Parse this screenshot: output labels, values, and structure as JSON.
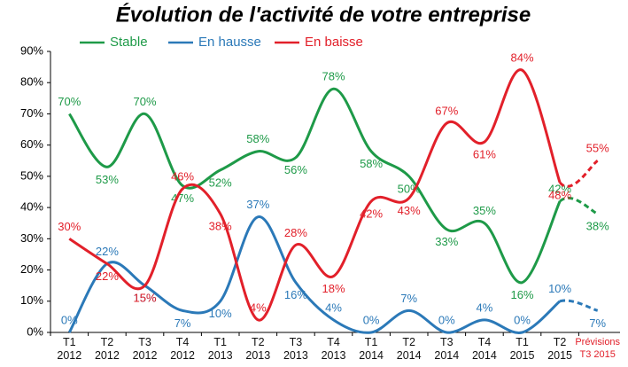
{
  "chart_data": {
    "type": "line",
    "title": "Évolution de l'activité de votre entreprise",
    "categories": [
      "T1 2012",
      "T2 2012",
      "T3 2012",
      "T4 2012",
      "T1 2013",
      "T2 2013",
      "T3 2013",
      "T4 2013",
      "T1 2014",
      "T2 2014",
      "T3 2014",
      "T4 2014",
      "T1 2015",
      "T2 2015",
      "Prévisions T3 2015"
    ],
    "series": [
      {
        "name": "Stable",
        "color": "#1e9a48",
        "values": [
          70,
          53,
          70,
          47,
          52,
          58,
          56,
          78,
          58,
          50,
          33,
          35,
          16,
          42,
          38
        ],
        "value_labels": [
          "70%",
          "53%",
          "70%",
          "47%",
          "52%",
          "58%",
          "56%",
          "78%",
          "58%",
          "50%",
          "33%",
          "35%",
          "16%",
          "42%",
          "38%"
        ]
      },
      {
        "name": "En hausse",
        "color": "#2b79b8",
        "values": [
          0,
          22,
          15,
          7,
          10,
          37,
          16,
          4,
          0,
          7,
          0,
          4,
          0,
          10,
          7
        ],
        "value_labels": [
          "0%",
          "22%",
          "15%",
          "7%",
          "10%",
          "37%",
          "16%",
          "4%",
          "0%",
          "7%",
          "0%",
          "4%",
          "0%",
          "10%",
          "7%"
        ]
      },
      {
        "name": "En baisse",
        "color": "#e2202a",
        "values": [
          30,
          22,
          15,
          46,
          38,
          4,
          28,
          18,
          42,
          43,
          67,
          61,
          84,
          48,
          55
        ],
        "value_labels": [
          "30%",
          "22%",
          "15%",
          "46%",
          "38%",
          "4%",
          "28%",
          "18%",
          "42%",
          "43%",
          "67%",
          "61%",
          "84%",
          "48%",
          "55%"
        ]
      }
    ],
    "ylim": [
      0,
      90
    ],
    "yticks": [
      {
        "value": 0,
        "label": "0%"
      },
      {
        "value": 10,
        "label": "10%"
      },
      {
        "value": 20,
        "label": "20%"
      },
      {
        "value": 30,
        "label": "30%"
      },
      {
        "value": 40,
        "label": "40%"
      },
      {
        "value": 50,
        "label": "50%"
      },
      {
        "value": 60,
        "label": "60%"
      },
      {
        "value": 70,
        "label": "70%"
      },
      {
        "value": 80,
        "label": "80%"
      },
      {
        "value": 90,
        "label": "90%"
      }
    ]
  }
}
